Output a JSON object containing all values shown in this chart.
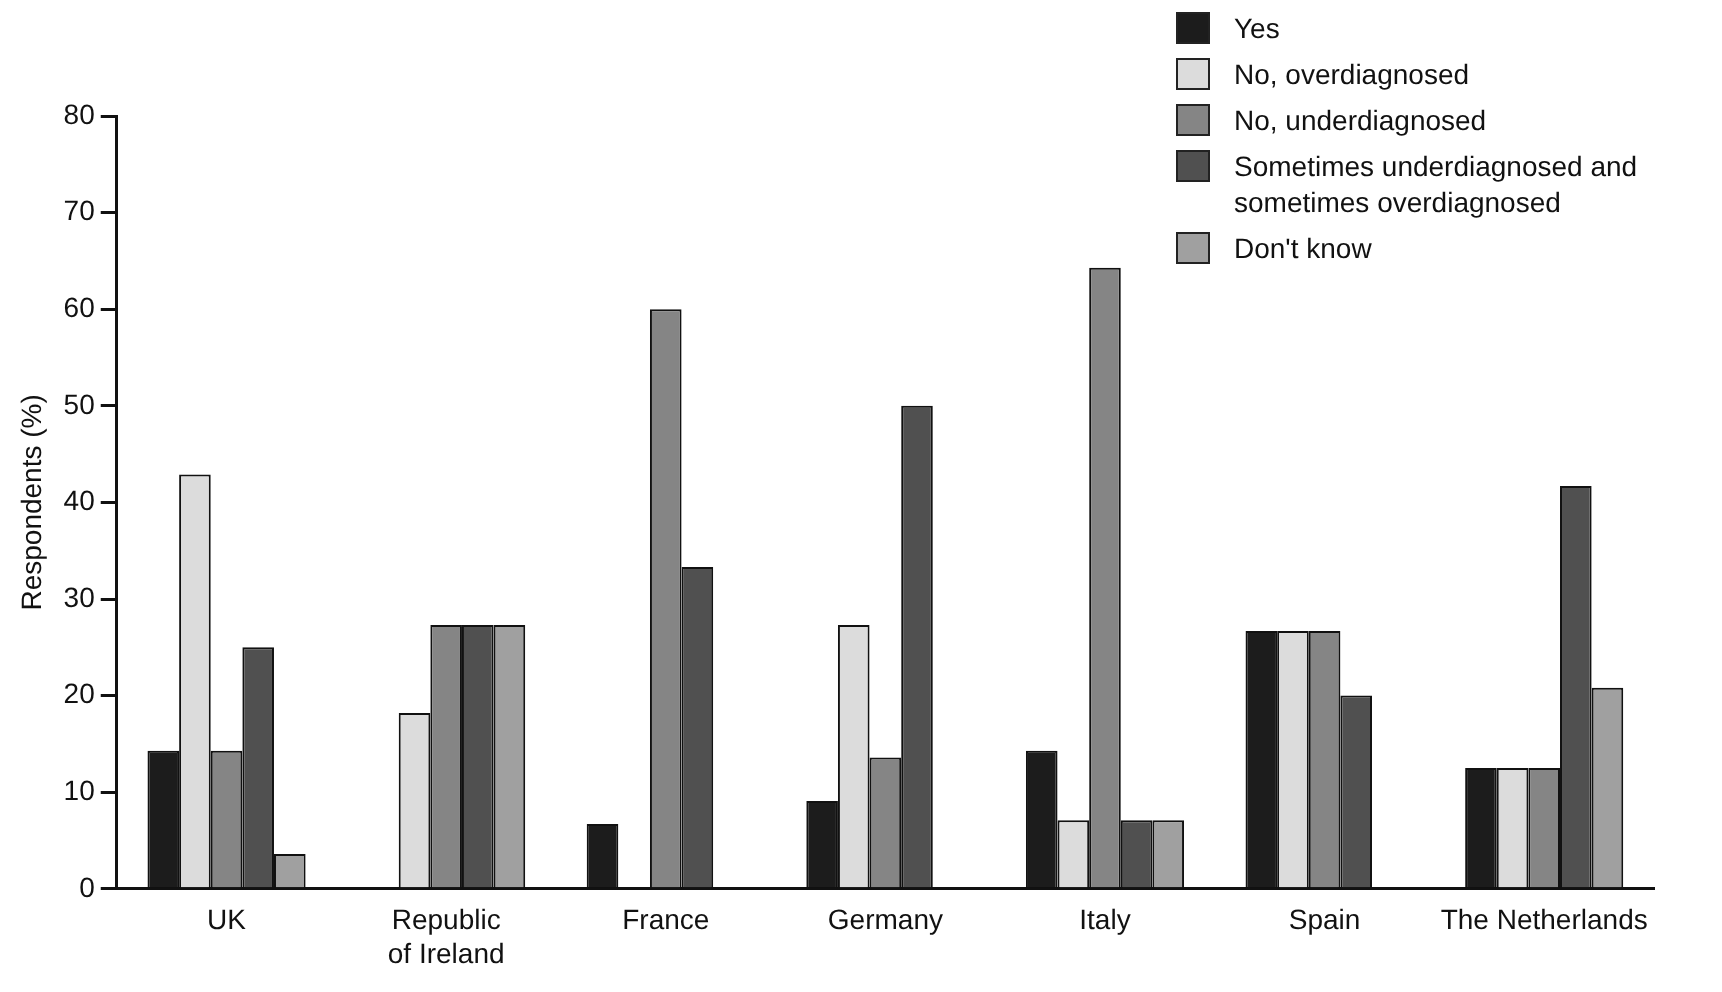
{
  "chart_data": {
    "type": "bar",
    "ylabel": "Respondents (%)",
    "categories": [
      "UK",
      "Republic of Ireland",
      "France",
      "Germany",
      "Italy",
      "Spain",
      "The Netherlands"
    ],
    "series": [
      {
        "name": "Yes",
        "color": "#1c1c1c",
        "values": [
          14.3,
          0,
          6.7,
          9.1,
          14.3,
          26.7,
          12.5
        ]
      },
      {
        "name": "No, overdiagnosed",
        "color": "#dcdcdc",
        "values": [
          42.9,
          18.2,
          0,
          27.3,
          7.1,
          26.7,
          12.5
        ]
      },
      {
        "name": "No, underdiagnosed",
        "color": "#858585",
        "values": [
          14.3,
          27.3,
          60,
          13.6,
          64.3,
          26.7,
          12.5
        ]
      },
      {
        "name": "Sometimes underdiagnosed and sometimes overdiagnosed",
        "color": "#505050",
        "values": [
          25,
          27.3,
          33.3,
          50,
          7.1,
          20,
          41.7
        ]
      },
      {
        "name": "Don't know",
        "color": "#a0a0a0",
        "values": [
          3.6,
          27.3,
          0,
          0,
          7.1,
          0,
          20.8
        ]
      }
    ],
    "ylim": [
      0,
      80
    ],
    "yticks": [
      0,
      10,
      20,
      30,
      40,
      50,
      60,
      70,
      80
    ],
    "grid": false,
    "legend": "top right"
  }
}
